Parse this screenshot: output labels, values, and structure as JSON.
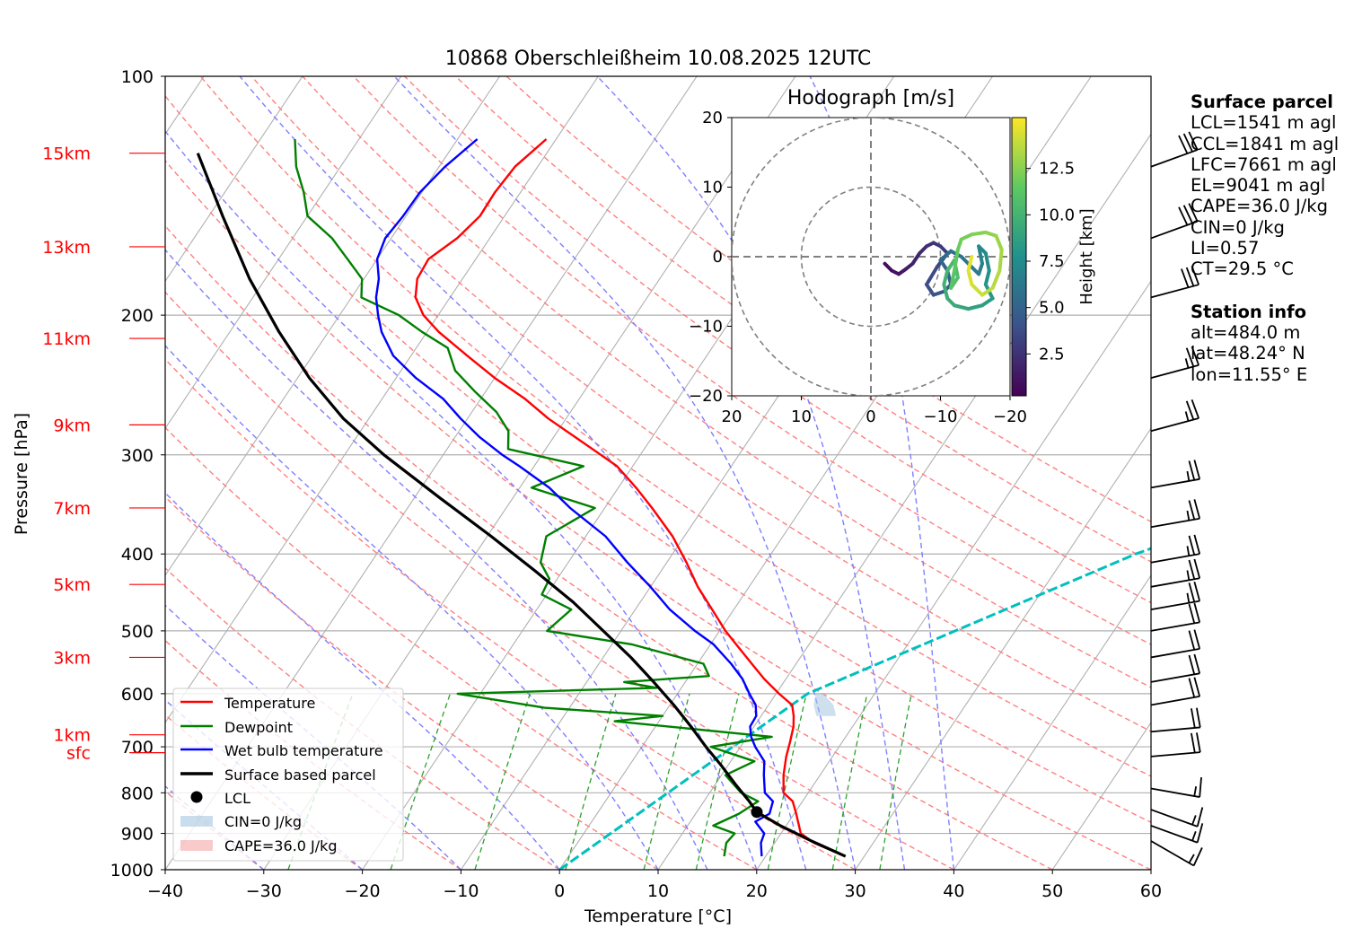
{
  "title": "10868 Oberschleißheim 10.08.2025 12UTC",
  "axes": {
    "xlabel": "Temperature [°C]",
    "ylabel": "Pressure [hPa]",
    "xticks": [
      "−40",
      "−30",
      "−20",
      "−10",
      "0",
      "10",
      "20",
      "30",
      "40",
      "50",
      "60"
    ],
    "yticks": [
      "100",
      "200",
      "300",
      "400",
      "500",
      "600",
      "700",
      "800",
      "900",
      "1000"
    ],
    "height_labels": [
      {
        "label": "15km",
        "p": 125
      },
      {
        "label": "13km",
        "p": 164
      },
      {
        "label": "11km",
        "p": 214
      },
      {
        "label": "9km",
        "p": 275
      },
      {
        "label": "7km",
        "p": 350
      },
      {
        "label": "5km",
        "p": 437
      },
      {
        "label": "3km",
        "p": 540
      },
      {
        "label": "1km",
        "p": 676
      },
      {
        "label": "sfc",
        "p": 712
      }
    ]
  },
  "legend": {
    "temperature": "Temperature",
    "dewpoint": "Dewpoint",
    "wetbulb": "Wet bulb temperature",
    "parcel": "Surface based parcel",
    "lcl": "LCL",
    "cin": "CIN=0 J/kg",
    "cape": "CAPE=36.0 J/kg"
  },
  "hodograph": {
    "title": "Hodograph [m/s]",
    "ticks": [
      "20",
      "10",
      "0",
      "−10",
      "−20"
    ],
    "colorbar_label": "Height [km]",
    "colorbar_ticks": [
      "12.5",
      "10.0",
      "7.5",
      "5.0",
      "2.5"
    ]
  },
  "surface_parcel": {
    "heading": "Surface parcel",
    "lines": [
      "LCL=1541 m agl",
      "CCL=1841 m agl",
      "LFC=7661 m agl",
      "EL=9041 m agl",
      "CAPE=36.0 J/kg",
      "CIN=0 J/kg",
      "LI=0.57",
      "CT=29.5 °C"
    ]
  },
  "station_info": {
    "heading": "Station info",
    "lines": [
      "alt=484.0 m",
      "lat=48.24° N",
      "lon=11.55° E"
    ]
  },
  "colors": {
    "temperature": "#ff0000",
    "dewpoint": "#008000",
    "wetbulb": "#0000ff",
    "parcel": "#000000",
    "dry_adiabat": "#ff7f7f",
    "moist_adiabat": "#7f7fff",
    "mixing_ratio": "#2ca02c",
    "ccl_line": "#00bfbf",
    "height_label": "#ff0000"
  },
  "chart_data": {
    "type": "skew-T log-p",
    "xlim": [
      -40,
      60
    ],
    "ylim": [
      1000,
      100
    ],
    "temperature": [
      [
        962,
        28.1
      ],
      [
        925,
        24.0
      ],
      [
        900,
        22.0
      ],
      [
        880,
        21.3
      ],
      [
        850,
        20.2
      ],
      [
        820,
        19.0
      ],
      [
        800,
        17.5
      ],
      [
        760,
        16.3
      ],
      [
        720,
        15.3
      ],
      [
        690,
        14.7
      ],
      [
        660,
        14.0
      ],
      [
        640,
        13.3
      ],
      [
        620,
        12.4
      ],
      [
        600,
        10.3
      ],
      [
        575,
        7.8
      ],
      [
        550,
        5.5
      ],
      [
        520,
        2.6
      ],
      [
        500,
        0.6
      ],
      [
        470,
        -2.2
      ],
      [
        440,
        -5.2
      ],
      [
        410,
        -8.0
      ],
      [
        380,
        -11.2
      ],
      [
        350,
        -15.2
      ],
      [
        330,
        -18.2
      ],
      [
        310,
        -21.6
      ],
      [
        300,
        -24.0
      ],
      [
        285,
        -27.8
      ],
      [
        270,
        -31.8
      ],
      [
        255,
        -35.5
      ],
      [
        240,
        -40.0
      ],
      [
        225,
        -44.3
      ],
      [
        210,
        -48.8
      ],
      [
        200,
        -51.5
      ],
      [
        190,
        -53.5
      ],
      [
        180,
        -54.6
      ],
      [
        170,
        -54.8
      ],
      [
        160,
        -53.3
      ],
      [
        150,
        -52.5
      ],
      [
        140,
        -52.6
      ],
      [
        130,
        -52.3
      ],
      [
        120,
        -51.0
      ]
    ],
    "dewpoint": [
      [
        962,
        15.8
      ],
      [
        925,
        15.1
      ],
      [
        900,
        15.3
      ],
      [
        880,
        12.6
      ],
      [
        850,
        14.4
      ],
      [
        820,
        15.5
      ],
      [
        800,
        13.2
      ],
      [
        760,
        10.4
      ],
      [
        730,
        12.4
      ],
      [
        700,
        7.0
      ],
      [
        680,
        12.5
      ],
      [
        650,
        -4.5
      ],
      [
        640,
        0.0
      ],
      [
        625,
        -12.5
      ],
      [
        600,
        -22.3
      ],
      [
        590,
        -2.5
      ],
      [
        580,
        -6.2
      ],
      [
        570,
        2.0
      ],
      [
        550,
        0.6
      ],
      [
        520,
        -8.0
      ],
      [
        500,
        -17.5
      ],
      [
        470,
        -16.5
      ],
      [
        450,
        -20.5
      ],
      [
        430,
        -20.8
      ],
      [
        410,
        -22.8
      ],
      [
        380,
        -24.0
      ],
      [
        350,
        -21.0
      ],
      [
        330,
        -28.8
      ],
      [
        310,
        -25.0
      ],
      [
        295,
        -33.8
      ],
      [
        280,
        -35.0
      ],
      [
        265,
        -37.5
      ],
      [
        250,
        -41.0
      ],
      [
        235,
        -44.5
      ],
      [
        220,
        -46.8
      ],
      [
        210,
        -50.5
      ],
      [
        200,
        -54.0
      ],
      [
        190,
        -59.0
      ],
      [
        180,
        -60.2
      ],
      [
        170,
        -63.0
      ],
      [
        160,
        -66.0
      ],
      [
        150,
        -70.0
      ],
      [
        140,
        -72.0
      ],
      [
        130,
        -74.5
      ],
      [
        120,
        -76.5
      ]
    ],
    "wetbulb": [
      [
        962,
        19.6
      ],
      [
        925,
        18.6
      ],
      [
        900,
        18.3
      ],
      [
        870,
        16.6
      ],
      [
        850,
        17.5
      ],
      [
        820,
        17.0
      ],
      [
        800,
        15.6
      ],
      [
        760,
        14.3
      ],
      [
        730,
        13.4
      ],
      [
        700,
        11.5
      ],
      [
        680,
        10.4
      ],
      [
        660,
        9.6
      ],
      [
        640,
        9.5
      ],
      [
        620,
        8.7
      ],
      [
        600,
        7.3
      ],
      [
        575,
        5.6
      ],
      [
        550,
        3.4
      ],
      [
        520,
        0.3
      ],
      [
        500,
        -2.5
      ],
      [
        470,
        -6.5
      ],
      [
        440,
        -10.0
      ],
      [
        410,
        -14.0
      ],
      [
        380,
        -18.0
      ],
      [
        350,
        -23.5
      ],
      [
        330,
        -27.0
      ],
      [
        310,
        -31.5
      ],
      [
        300,
        -34.0
      ],
      [
        285,
        -37.5
      ],
      [
        270,
        -40.7
      ],
      [
        255,
        -43.8
      ],
      [
        240,
        -48.0
      ],
      [
        225,
        -51.8
      ],
      [
        210,
        -54.6
      ],
      [
        200,
        -56.1
      ],
      [
        190,
        -57.5
      ],
      [
        180,
        -58.5
      ],
      [
        170,
        -60.0
      ],
      [
        160,
        -60.6
      ],
      [
        150,
        -60.3
      ],
      [
        140,
        -60.2
      ],
      [
        130,
        -59.4
      ],
      [
        120,
        -58.0
      ]
    ],
    "parcel": [
      [
        962,
        28.1
      ],
      [
        920,
        23.6
      ],
      [
        880,
        19.4
      ],
      [
        846,
        16.1
      ],
      [
        820,
        14.6
      ],
      [
        780,
        12.0
      ],
      [
        740,
        9.4
      ],
      [
        700,
        6.5
      ],
      [
        660,
        3.6
      ],
      [
        620,
        0.4
      ],
      [
        580,
        -3.2
      ],
      [
        540,
        -7.2
      ],
      [
        500,
        -11.8
      ],
      [
        460,
        -16.8
      ],
      [
        420,
        -22.8
      ],
      [
        380,
        -29.6
      ],
      [
        340,
        -37.4
      ],
      [
        300,
        -46.0
      ],
      [
        270,
        -52.6
      ],
      [
        240,
        -58.8
      ],
      [
        210,
        -65.0
      ],
      [
        180,
        -71.6
      ],
      [
        150,
        -78.6
      ],
      [
        125,
        -85.4
      ]
    ],
    "lcl": {
      "p": 846,
      "t": 16.1
    },
    "ccl_line": [
      [
        1000,
        0.0
      ],
      [
        600,
        13.2
      ],
      [
        400,
        37.0
      ],
      [
        300,
        58.0
      ]
    ],
    "hodograph": {
      "xlim": [
        -20,
        20
      ],
      "ylim": [
        -20,
        20
      ],
      "rings": [
        10,
        20
      ],
      "points": [
        [
          2.0,
          -1.0,
          0.3
        ],
        [
          3.0,
          -2.0,
          0.6
        ],
        [
          4.0,
          -2.5,
          0.8
        ],
        [
          5.0,
          -1.8,
          1.0
        ],
        [
          6.0,
          -1.0,
          1.3
        ],
        [
          7.0,
          0.5,
          1.6
        ],
        [
          8.0,
          1.5,
          1.9
        ],
        [
          9.0,
          2.0,
          2.2
        ],
        [
          10.0,
          1.5,
          2.5
        ],
        [
          11.0,
          0.5,
          2.8
        ],
        [
          9.5,
          -1.5,
          3.1
        ],
        [
          8.0,
          -4.0,
          3.4
        ],
        [
          9.0,
          -5.5,
          3.7
        ],
        [
          10.5,
          -5.0,
          4.0
        ],
        [
          11.5,
          -4.0,
          4.3
        ],
        [
          11.0,
          -2.0,
          4.6
        ],
        [
          10.0,
          -0.5,
          4.9
        ],
        [
          11.5,
          0.8,
          5.2
        ],
        [
          13.0,
          0.0,
          5.5
        ],
        [
          14.5,
          -1.5,
          5.8
        ],
        [
          15.5,
          -2.5,
          6.1
        ],
        [
          16.0,
          -1.0,
          6.4
        ],
        [
          15.5,
          1.5,
          6.7
        ],
        [
          16.5,
          0.5,
          7.0
        ],
        [
          17.0,
          -2.0,
          7.3
        ],
        [
          16.5,
          -4.0,
          7.6
        ],
        [
          17.5,
          -6.0,
          7.9
        ],
        [
          16.0,
          -7.0,
          8.2
        ],
        [
          14.0,
          -7.5,
          8.5
        ],
        [
          12.0,
          -7.0,
          8.8
        ],
        [
          11.0,
          -6.0,
          9.1
        ],
        [
          10.5,
          -4.0,
          9.4
        ],
        [
          11.0,
          -2.0,
          9.7
        ],
        [
          12.0,
          -0.5,
          10.0
        ],
        [
          12.5,
          -3.0,
          10.3
        ],
        [
          11.5,
          -4.5,
          10.6
        ],
        [
          12.0,
          -2.0,
          10.9
        ],
        [
          12.5,
          1.0,
          11.2
        ],
        [
          13.0,
          2.5,
          11.5
        ],
        [
          14.5,
          3.2,
          11.8
        ],
        [
          16.5,
          3.5,
          12.1
        ],
        [
          18.0,
          3.0,
          12.4
        ],
        [
          18.8,
          1.0,
          12.7
        ],
        [
          18.5,
          -2.0,
          13.0
        ],
        [
          17.5,
          -4.5,
          13.3
        ],
        [
          16.0,
          -5.5,
          13.6
        ],
        [
          14.5,
          -4.0,
          13.9
        ],
        [
          14.0,
          -2.0,
          14.2
        ],
        [
          14.5,
          0.0,
          14.5
        ]
      ]
    },
    "wind_barbs": [
      {
        "p": 130,
        "dir": 250,
        "spd": 30
      },
      {
        "p": 160,
        "dir": 250,
        "spd": 30
      },
      {
        "p": 190,
        "dir": 255,
        "spd": 30
      },
      {
        "p": 240,
        "dir": 255,
        "spd": 25
      },
      {
        "p": 280,
        "dir": 255,
        "spd": 25
      },
      {
        "p": 330,
        "dir": 260,
        "spd": 25
      },
      {
        "p": 370,
        "dir": 260,
        "spd": 25
      },
      {
        "p": 410,
        "dir": 260,
        "spd": 25
      },
      {
        "p": 440,
        "dir": 260,
        "spd": 25
      },
      {
        "p": 470,
        "dir": 260,
        "spd": 25
      },
      {
        "p": 500,
        "dir": 260,
        "spd": 20
      },
      {
        "p": 540,
        "dir": 260,
        "spd": 20
      },
      {
        "p": 580,
        "dir": 260,
        "spd": 20
      },
      {
        "p": 620,
        "dir": 260,
        "spd": 20
      },
      {
        "p": 670,
        "dir": 265,
        "spd": 20
      },
      {
        "p": 720,
        "dir": 265,
        "spd": 20
      },
      {
        "p": 790,
        "dir": 280,
        "spd": 15
      },
      {
        "p": 840,
        "dir": 290,
        "spd": 15
      },
      {
        "p": 880,
        "dir": 290,
        "spd": 15
      },
      {
        "p": 920,
        "dir": 300,
        "spd": 15
      }
    ]
  }
}
